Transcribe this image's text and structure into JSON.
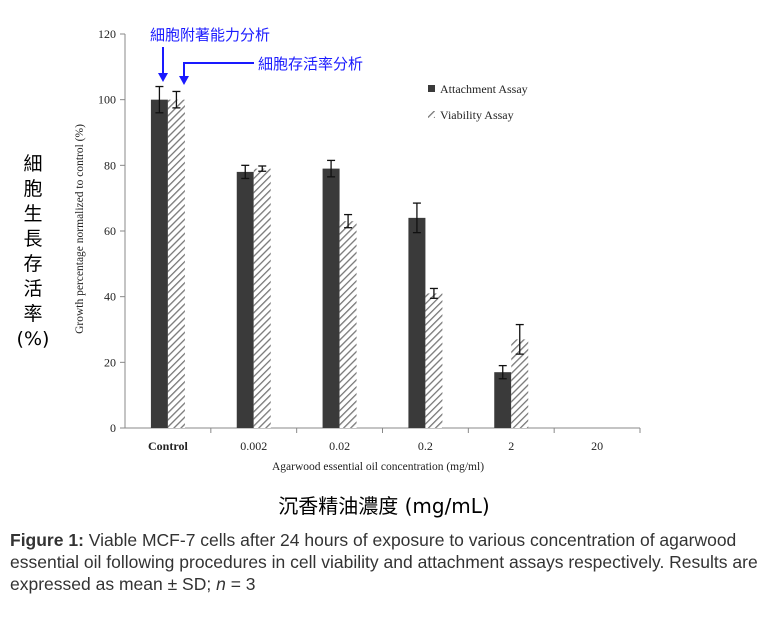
{
  "chart_data": {
    "type": "bar",
    "categories": [
      "Control",
      "0.002",
      "0.02",
      "0.2",
      "2",
      "20"
    ],
    "series": [
      {
        "name": "Attachment Assay",
        "values": [
          100,
          78,
          79,
          64,
          17,
          0
        ],
        "errors": [
          4,
          2,
          2.5,
          4.5,
          2,
          0
        ],
        "color": "#3a3a3a",
        "pattern": "solid"
      },
      {
        "name": "Viability Assay",
        "values": [
          100,
          79,
          63,
          41,
          27,
          0
        ],
        "errors": [
          2.5,
          0.8,
          2,
          1.5,
          4.5,
          0
        ],
        "color": "#888888",
        "pattern": "diagonal-hatch"
      }
    ],
    "ylim": [
      0,
      120
    ],
    "yticks": [
      "0",
      "20",
      "40",
      "60",
      "80",
      "100",
      "120"
    ],
    "ylabel": "Growth percentage normalized to control (%)",
    "xlabel": "Agarwood essential oil concentration (mg/ml)",
    "legend_position": "top-right",
    "grid": false
  },
  "annotations": {
    "attachment_label": "細胞附著能力分析",
    "viability_label": "細胞存活率分析",
    "arrow_color": "#1a1aff"
  },
  "cn_ylabel": [
    "細",
    "胞",
    "生",
    "長",
    "存",
    "活",
    "率",
    "(%)"
  ],
  "cn_xlabel": "沉香精油濃度 (mg/mL)",
  "caption": {
    "label": "Figure 1:",
    "text_1": " Viable MCF-7 cells after 24 hours of exposure to various concentration of agarwood essential oil following procedures in cell viability and attachment assays respectively. Results are expressed as mean ± SD; ",
    "n_var": "n",
    "text_2": " = 3"
  }
}
